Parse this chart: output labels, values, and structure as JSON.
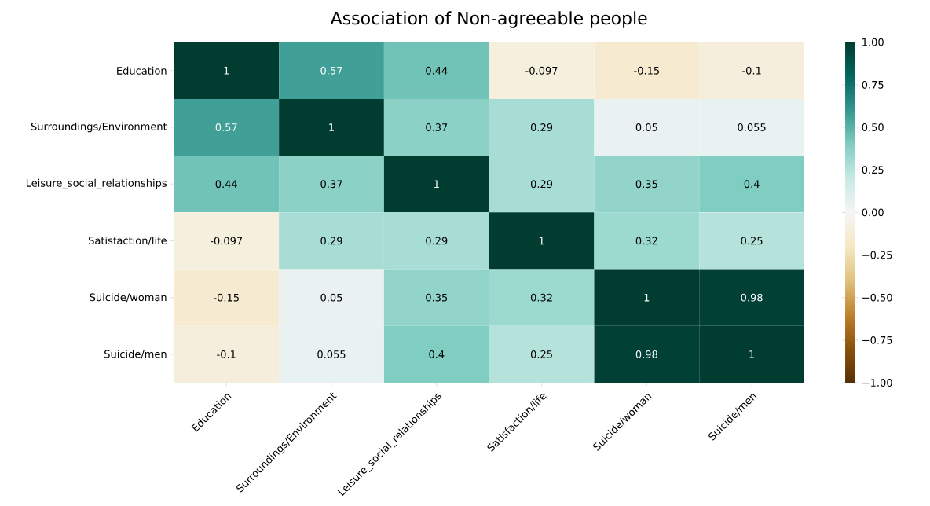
{
  "chart_data": {
    "type": "heatmap",
    "title": "Association of Non-agreeable people",
    "categories": [
      "Education",
      "Surroundings/Environment",
      "Leisure_social_relationships",
      "Satisfaction/life",
      "Suicide/woman",
      "Suicide/men"
    ],
    "y_categories": [
      "Education",
      "Surroundings/Environment",
      "Leisure_social_relationships",
      "Satisfaction/life",
      "Suicide/woman",
      "Suicide/men"
    ],
    "cells": [
      [
        1,
        0.57,
        0.44,
        -0.097,
        -0.15,
        -0.1
      ],
      [
        0.57,
        1,
        0.37,
        0.29,
        0.05,
        0.055
      ],
      [
        0.44,
        0.37,
        1,
        0.29,
        0.35,
        0.4
      ],
      [
        -0.097,
        0.29,
        0.29,
        1,
        0.32,
        0.25
      ],
      [
        -0.15,
        0.05,
        0.35,
        0.32,
        1,
        0.98
      ],
      [
        -0.1,
        0.055,
        0.4,
        0.25,
        0.98,
        1
      ]
    ],
    "clim": [
      -1,
      1
    ],
    "cticks": [
      {
        "value": -1,
        "label": "−1.00"
      },
      {
        "value": -0.75,
        "label": "−0.75"
      },
      {
        "value": -0.5,
        "label": "−0.50"
      },
      {
        "value": -0.25,
        "label": "−0.25"
      },
      {
        "value": 0,
        "label": "0.00"
      },
      {
        "value": 0.25,
        "label": "0.25"
      },
      {
        "value": 0.5,
        "label": "0.50"
      },
      {
        "value": 0.75,
        "label": "0.75"
      },
      {
        "value": 1,
        "label": "1.00"
      }
    ],
    "data_labels": true
  }
}
